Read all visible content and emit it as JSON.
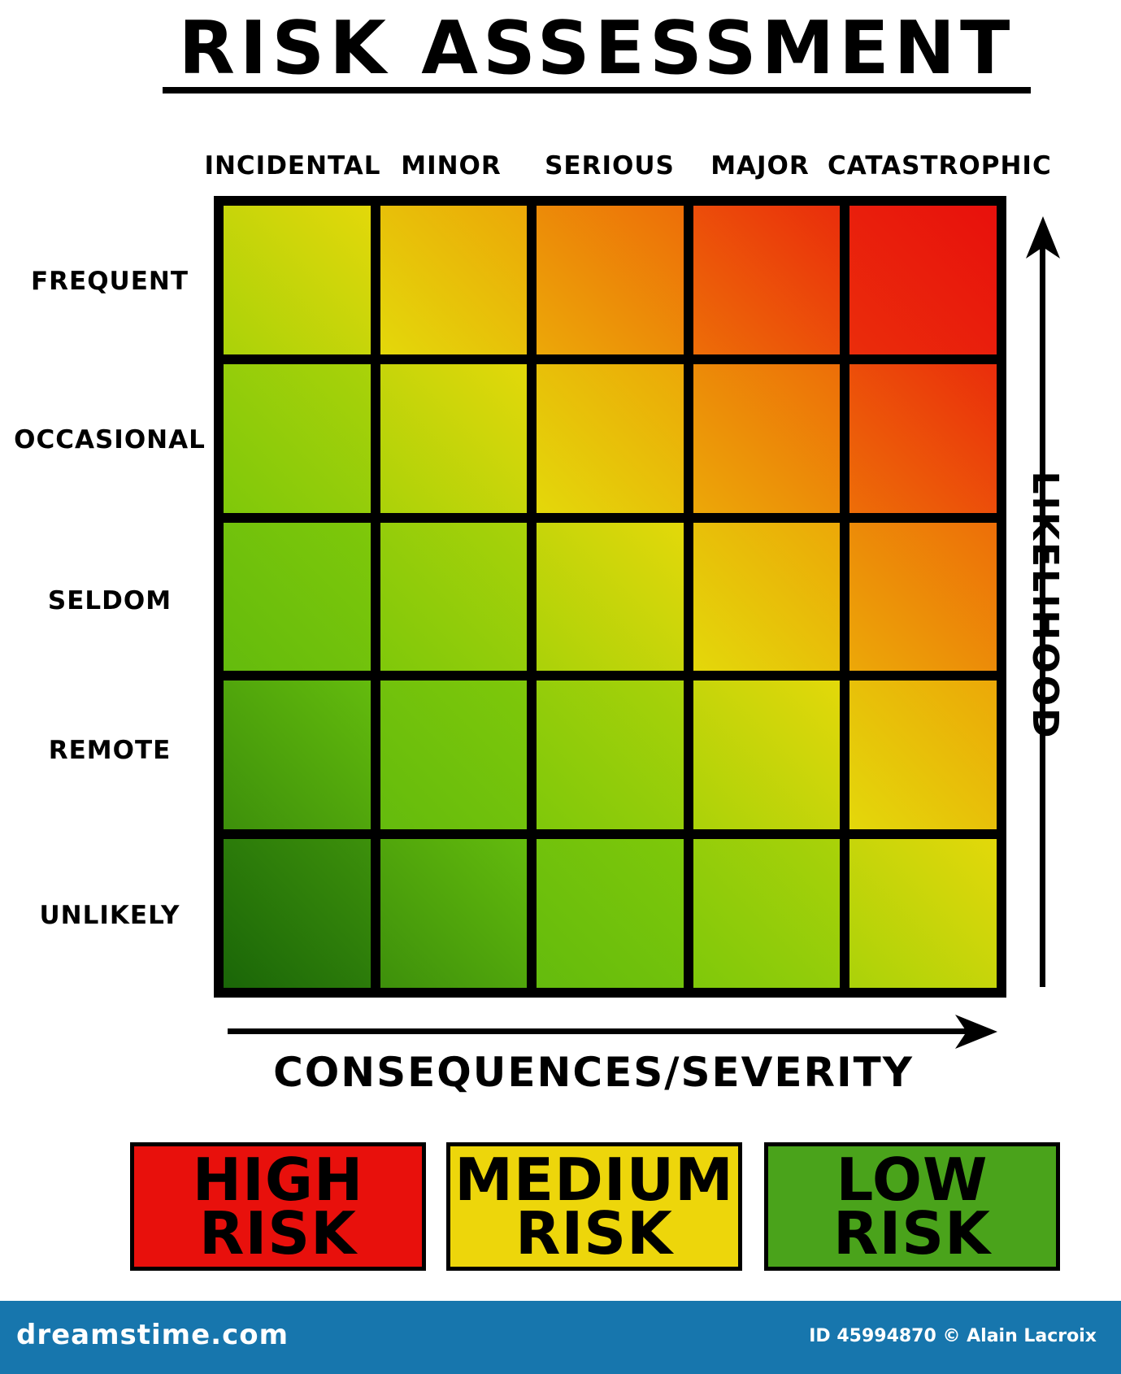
{
  "title": "RISK ASSESSMENT",
  "columns": [
    "INCIDENTAL",
    "MINOR",
    "SERIOUS",
    "MAJOR",
    "CATASTROPHIC"
  ],
  "rows": [
    "FREQUENT",
    "OCCASIONAL",
    "SELDOM",
    "REMOTE",
    "UNLIKELY"
  ],
  "y_axis_title": "LIKELIHOOD",
  "x_axis_title": "CONSEQUENCES/SEVERITY",
  "legend": [
    {
      "line1": "HIGH",
      "line2": "RISK",
      "color": "#e8100c"
    },
    {
      "line1": "MEDIUM",
      "line2": "RISK",
      "color": "#edd60b"
    },
    {
      "line1": "LOW",
      "line2": "RISK",
      "color": "#4aa31b"
    }
  ],
  "footer": {
    "brand": "dreamstime.com",
    "credit": "ID 45994870 © Alain Lacroix"
  },
  "colors": {
    "dark_green": "#1a6608",
    "green": "#5fb80e",
    "lime": "#8ccf08",
    "yellow": "#ead90a",
    "orange": "#ee7c07",
    "red": "#e8100c",
    "footer_bg": "#1776ad"
  }
}
